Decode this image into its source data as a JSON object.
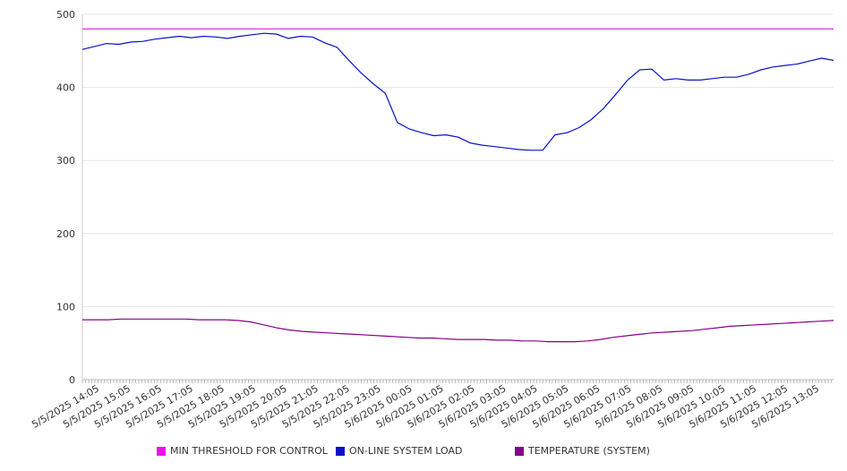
{
  "chart_data": {
    "type": "line",
    "title": "",
    "xlabel": "",
    "ylabel": "",
    "ylim": [
      0,
      500
    ],
    "yticks": [
      0,
      100,
      200,
      300,
      400,
      500
    ],
    "grid": true,
    "legend_position": "bottom",
    "x_labels": [
      "5/5/2025 14:05",
      "5/5/2025 15:05",
      "5/5/2025 16:05",
      "5/5/2025 17:05",
      "5/5/2025 18:05",
      "5/5/2025 19:05",
      "5/5/2025 20:05",
      "5/5/2025 21:05",
      "5/5/2025 22:05",
      "5/5/2025 23:05",
      "5/6/2025 00:05",
      "5/6/2025 01:05",
      "5/6/2025 02:05",
      "5/6/2025 03:05",
      "5/6/2025 04:05",
      "5/6/2025 05:05",
      "5/6/2025 06:05",
      "5/6/2025 07:05",
      "5/6/2025 08:05",
      "5/6/2025 09:05",
      "5/6/2025 10:05",
      "5/6/2025 11:05",
      "5/6/2025 12:05",
      "5/6/2025 13:05"
    ],
    "series": [
      {
        "name": "MIN THRESHOLD FOR CONTROL",
        "color": "#ee11ee",
        "values": [
          480,
          480,
          480,
          480,
          480,
          480,
          480,
          480,
          480,
          480,
          480,
          480,
          480,
          480,
          480,
          480,
          480,
          480,
          480,
          480,
          480,
          480,
          480,
          480,
          480,
          480,
          480,
          480,
          480,
          480,
          480,
          480,
          480,
          480,
          480,
          480,
          480,
          480,
          480,
          480,
          480,
          480,
          480,
          480,
          480,
          480,
          480,
          480,
          480
        ]
      },
      {
        "name": "ON-LINE SYSTEM LOAD",
        "color": "#0a12c8",
        "values": [
          452,
          456,
          460,
          459,
          462,
          463,
          466,
          468,
          470,
          468,
          470,
          469,
          467,
          470,
          472,
          474,
          473,
          467,
          470,
          469,
          461,
          455,
          437,
          420,
          405,
          392,
          352,
          343,
          338,
          334,
          335,
          332,
          324,
          321,
          319,
          317,
          315,
          314,
          314,
          335,
          338,
          345,
          356,
          371,
          390,
          410,
          424,
          425,
          410,
          412,
          410,
          410,
          412,
          414,
          414,
          418,
          424,
          428,
          430,
          432,
          436,
          440,
          437
        ]
      }
    ],
    "temperature_series": {
      "name": "TEMPERATURE (SYSTEM)",
      "color": "#880088",
      "values": [
        82,
        82,
        82,
        83,
        83,
        83,
        83,
        83,
        83,
        82,
        82,
        82,
        81,
        79,
        75,
        71,
        68,
        66,
        65,
        64,
        63,
        62,
        61,
        60,
        59,
        58,
        57,
        57,
        56,
        55,
        55,
        55,
        54,
        54,
        53,
        53,
        52,
        52,
        52,
        53,
        55,
        58,
        60,
        62,
        64,
        65,
        66,
        67,
        69,
        71,
        73,
        74,
        75,
        76,
        77,
        78,
        79,
        80,
        81
      ]
    }
  },
  "legend": {
    "items": [
      {
        "label": "MIN THRESHOLD FOR CONTROL",
        "color": "#ee11ee"
      },
      {
        "label": "ON-LINE SYSTEM LOAD",
        "color": "#0a12c8"
      },
      {
        "label": "TEMPERATURE (SYSTEM)",
        "color": "#880088"
      }
    ]
  }
}
